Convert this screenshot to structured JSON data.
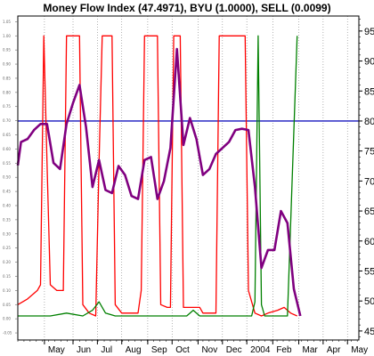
{
  "title": "Money Flow Index (47.4971), BYU (1.0000), SELL (0.0099)",
  "colors": {
    "mfi": "#800080",
    "buy": "#008000",
    "sell": "#ff0000",
    "ref_line": "#3c3cc8",
    "grid": "#808080",
    "tick_marks": "#000000"
  },
  "chart_data": {
    "type": "line",
    "title": "Money Flow Index (47.4971), BYU (1.0000), SELL (0.0099)",
    "xlabel": "",
    "ylabel": "",
    "x": [
      0,
      2.5,
      5,
      7.5,
      10,
      12.5,
      15,
      17.5,
      20,
      22.5,
      25,
      27.5,
      30,
      32.5,
      35,
      37.5,
      40,
      42.5,
      45,
      47.5,
      50,
      52.5,
      55,
      57.5,
      60,
      62.5,
      65,
      67.5,
      70,
      72.5,
      75,
      77.5,
      80,
      82.5,
      85,
      87.5,
      90,
      92.5,
      95,
      97.5,
      100
    ],
    "month_labels": [
      "May",
      "Jun",
      "Jul",
      "Aug",
      "Sep",
      "Oct",
      "Nov",
      "Dec",
      "2004",
      "Feb",
      "Mar",
      "Apr",
      "May"
    ],
    "month_ticks": [
      8.2,
      17.0,
      24.5,
      32.0,
      40.0,
      47.5,
      55.5,
      63.0,
      70.5,
      78.5,
      86.5,
      94.0,
      101.5
    ],
    "ylim_right": [
      43.5,
      97.5
    ],
    "ylim_left": [
      -0.075,
      1.07
    ],
    "right_ticks": [
      45,
      50,
      55,
      60,
      65,
      70,
      75,
      80,
      85,
      90,
      95
    ],
    "left_ticks": [
      "-0.05",
      "0.00",
      "0.05",
      "0.10",
      "0.15",
      "0.20",
      "0.25",
      "0.30",
      "0.35",
      "0.40",
      "0.45",
      "0.50",
      "0.55",
      "0.60",
      "0.65",
      "0.70",
      "0.75",
      "0.80",
      "0.85",
      "0.90",
      "0.95",
      "1.00",
      "1.05"
    ],
    "ref_line": 80,
    "grid": "vertical dotted at month ticks",
    "mfi_points": [
      [
        0,
        72.6
      ],
      [
        1,
        76.5
      ],
      [
        3,
        77
      ],
      [
        5,
        78.5
      ],
      [
        7,
        79.5
      ],
      [
        9,
        79.5
      ],
      [
        11,
        73
      ],
      [
        13,
        72
      ],
      [
        15,
        79.5
      ],
      [
        17,
        83
      ],
      [
        19,
        86
      ],
      [
        21,
        79
      ],
      [
        23,
        69
      ],
      [
        25,
        73.5
      ],
      [
        27,
        68.5
      ],
      [
        29,
        68
      ],
      [
        31,
        72.5
      ],
      [
        33,
        71
      ],
      [
        35,
        67.5
      ],
      [
        37,
        67
      ],
      [
        39,
        73.5
      ],
      [
        41,
        74
      ],
      [
        43,
        67
      ],
      [
        45,
        70
      ],
      [
        47,
        75.5
      ],
      [
        49,
        92
      ],
      [
        51,
        76
      ],
      [
        53,
        80.5
      ],
      [
        55,
        77
      ],
      [
        57,
        71
      ],
      [
        59,
        72
      ],
      [
        61,
        74.5
      ],
      [
        63,
        75.5
      ],
      [
        65,
        76.5
      ],
      [
        67,
        78.5
      ],
      [
        69,
        78.7
      ],
      [
        71,
        78.5
      ],
      [
        73,
        69
      ],
      [
        75,
        55.5
      ],
      [
        77,
        58.5
      ],
      [
        79,
        58.5
      ],
      [
        81,
        65
      ],
      [
        83,
        63
      ],
      [
        85,
        52
      ],
      [
        87,
        47.5
      ]
    ],
    "sell_points": [
      [
        0,
        0.05
      ],
      [
        3,
        0.07
      ],
      [
        6,
        0.1
      ],
      [
        7,
        0.12
      ],
      [
        8,
        1.0
      ],
      [
        9,
        0.55
      ],
      [
        10,
        0.12
      ],
      [
        12,
        0.1
      ],
      [
        14,
        0.1
      ],
      [
        15,
        1.0
      ],
      [
        19,
        1.0
      ],
      [
        20,
        0.05
      ],
      [
        22,
        0.02
      ],
      [
        24,
        0.01
      ],
      [
        25,
        0.55
      ],
      [
        26,
        1.0
      ],
      [
        29,
        1.0
      ],
      [
        30,
        0.05
      ],
      [
        32,
        0.02
      ],
      [
        35,
        0.02
      ],
      [
        37,
        0.02
      ],
      [
        38,
        0.1
      ],
      [
        39,
        1.0
      ],
      [
        43,
        1.0
      ],
      [
        44,
        0.05
      ],
      [
        46,
        0.04
      ],
      [
        47,
        0.04
      ],
      [
        48,
        1.0
      ],
      [
        50,
        1.0
      ],
      [
        51,
        0.04
      ],
      [
        55,
        0.04
      ],
      [
        56,
        0.04
      ],
      [
        57,
        0.02
      ],
      [
        59,
        0.02
      ],
      [
        61,
        0.02
      ],
      [
        62,
        1.0
      ],
      [
        70,
        1.0
      ],
      [
        71,
        0.1
      ],
      [
        73,
        0.02
      ],
      [
        75,
        0.01
      ],
      [
        77,
        0.02
      ],
      [
        80,
        0.03
      ],
      [
        82,
        0.04
      ],
      [
        84,
        0.02
      ],
      [
        86,
        0.01
      ]
    ],
    "buy_points": [
      [
        0,
        0.01
      ],
      [
        5,
        0.01
      ],
      [
        10,
        0.01
      ],
      [
        15,
        0.02
      ],
      [
        20,
        0.01
      ],
      [
        23,
        0.03
      ],
      [
        25,
        0.06
      ],
      [
        27,
        0.02
      ],
      [
        30,
        0.01
      ],
      [
        40,
        0.01
      ],
      [
        46,
        0.01
      ],
      [
        52,
        0.01
      ],
      [
        54,
        0.03
      ],
      [
        56,
        0.01
      ],
      [
        60,
        0.01
      ],
      [
        65,
        0.01
      ],
      [
        70,
        0.01
      ],
      [
        72,
        0.01
      ],
      [
        73,
        0.06
      ],
      [
        74,
        1.0
      ],
      [
        75,
        0.05
      ],
      [
        76,
        0.01
      ],
      [
        80,
        0.01
      ],
      [
        83,
        0.01
      ],
      [
        86,
        1.0
      ]
    ]
  }
}
